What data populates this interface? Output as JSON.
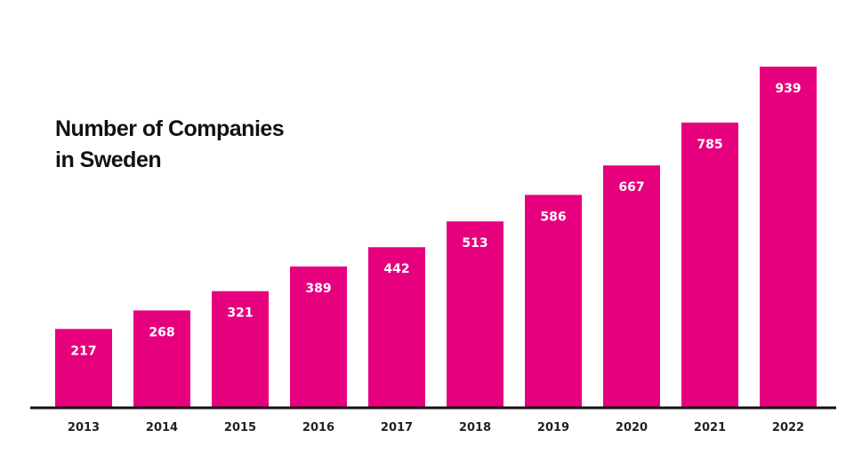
{
  "chart_data": {
    "type": "bar",
    "title_lines": [
      "Number of Companies",
      "in Sweden"
    ],
    "categories": [
      "2013",
      "2014",
      "2015",
      "2016",
      "2017",
      "2018",
      "2019",
      "2020",
      "2021",
      "2022"
    ],
    "values": [
      217,
      268,
      321,
      389,
      442,
      513,
      586,
      667,
      785,
      939
    ],
    "xlabel": "",
    "ylabel": "",
    "ylim": [
      0,
      939
    ],
    "grid": false,
    "legend": "none",
    "data_labels": true,
    "bar_color": "#e6007e",
    "axis_color": "#111111",
    "label_color": "#ffffff"
  }
}
